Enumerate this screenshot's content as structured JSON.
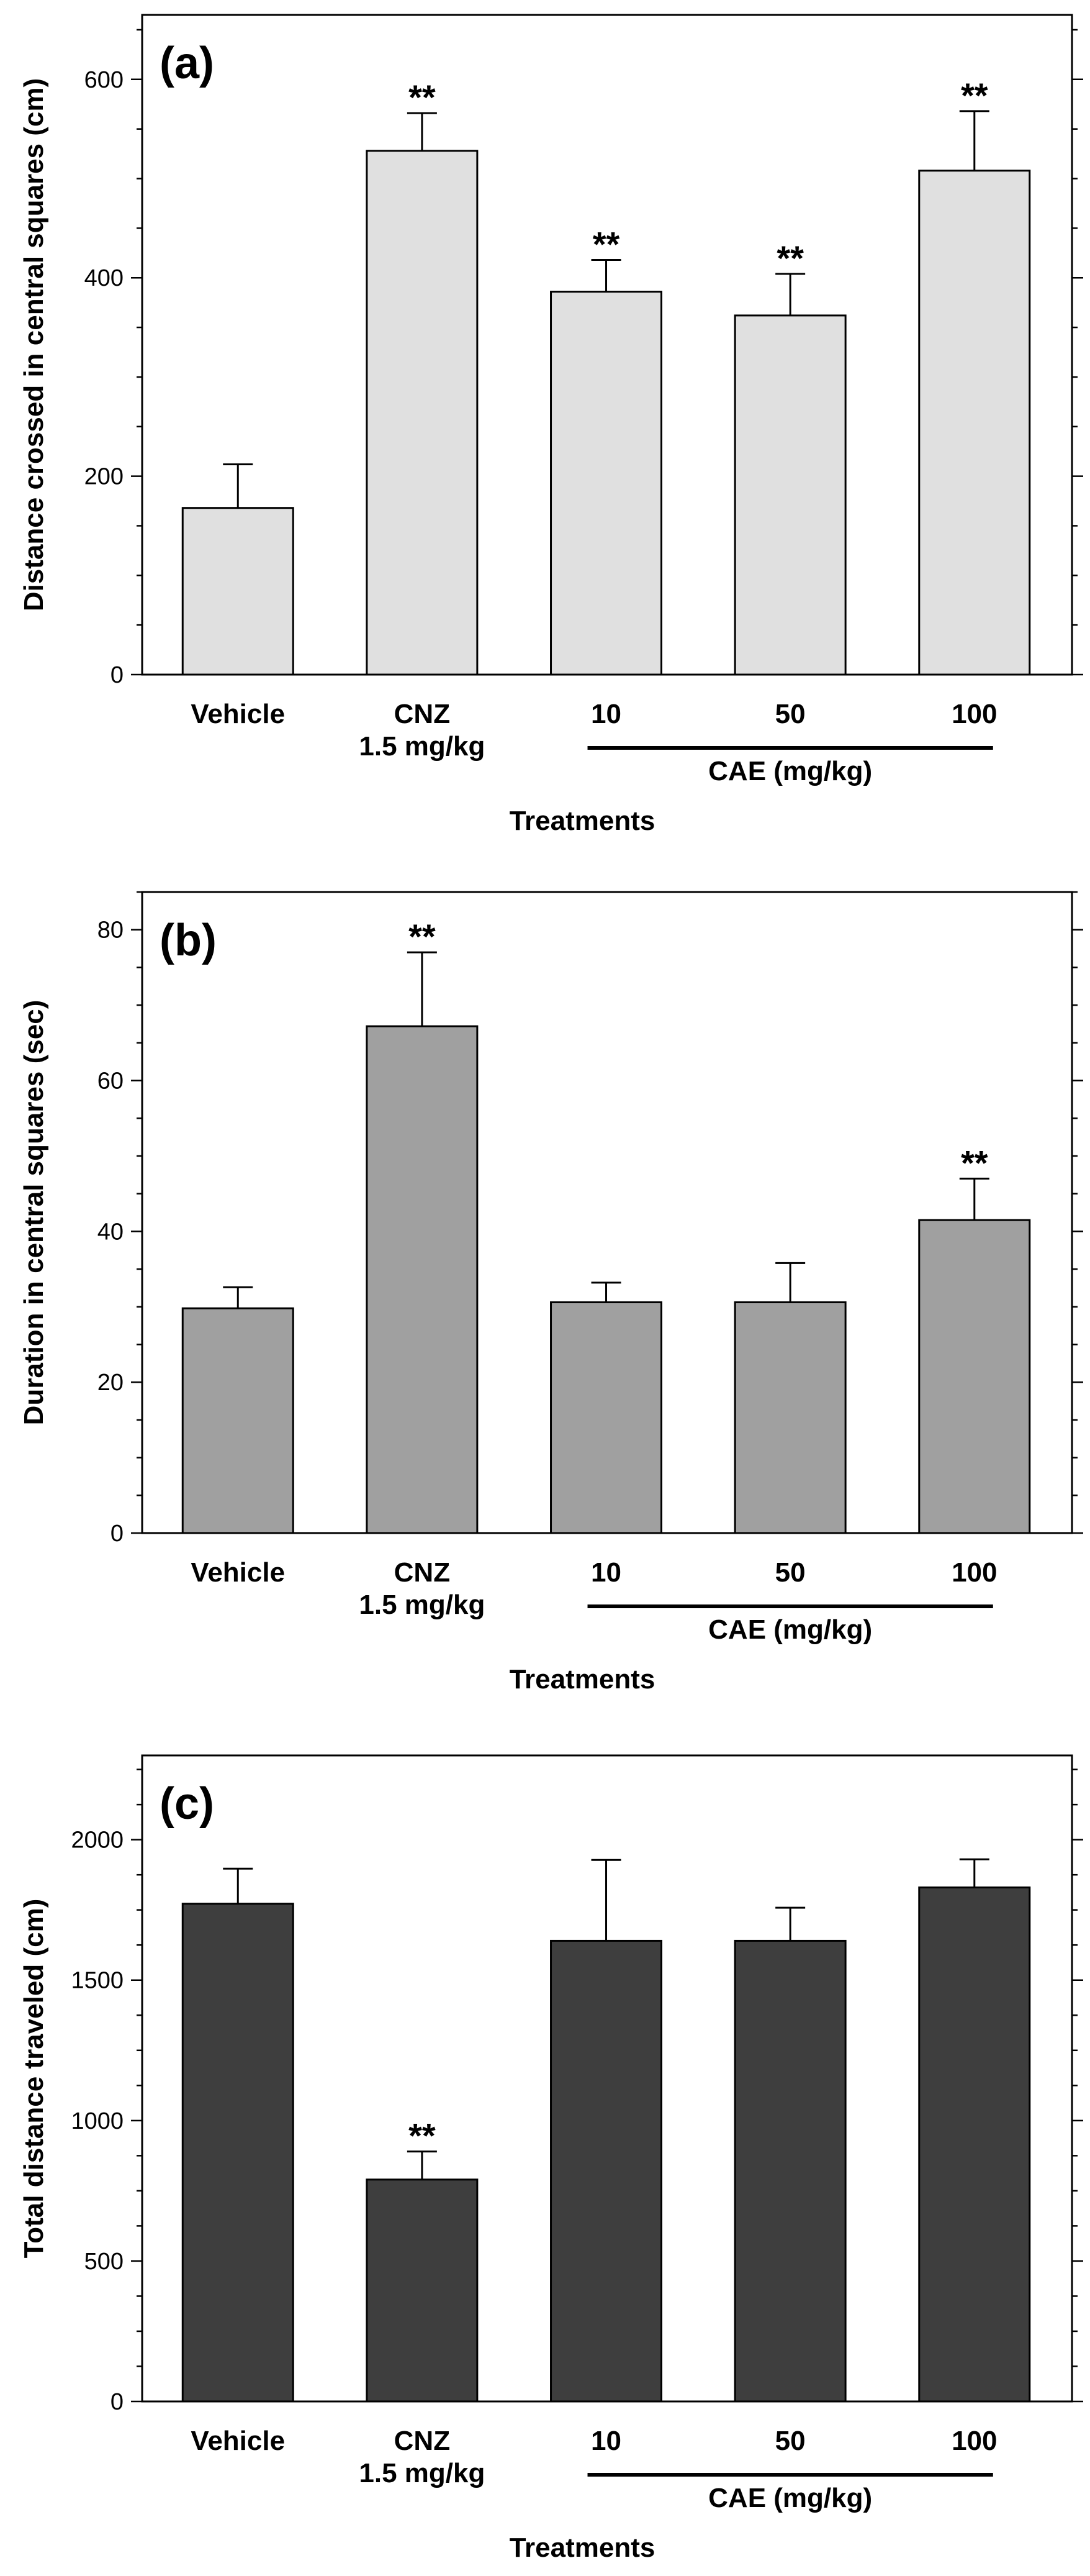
{
  "chart_data": [
    {
      "type": "bar",
      "panel": "(a)",
      "categories": [
        "Vehicle",
        "CNZ\n1.5 mg/kg",
        "10",
        "50",
        "100"
      ],
      "group_label": "CAE (mg/kg)",
      "group_categories": [
        "10",
        "50",
        "100"
      ],
      "values": [
        168,
        528,
        386,
        362,
        508
      ],
      "errors": [
        44,
        38,
        32,
        42,
        60
      ],
      "significance": [
        "",
        "**",
        "**",
        "**",
        "**"
      ],
      "xlabel": "Treatments",
      "ylabel": "Distance crossed in central squares (cm)",
      "ylim": [
        0,
        665
      ],
      "yticks": [
        0,
        200,
        400,
        600
      ],
      "grid": false,
      "bar_color": "#e0e0e0"
    },
    {
      "type": "bar",
      "panel": "(b)",
      "categories": [
        "Vehicle",
        "CNZ\n1.5 mg/kg",
        "10",
        "50",
        "100"
      ],
      "group_label": "CAE (mg/kg)",
      "group_categories": [
        "10",
        "50",
        "100"
      ],
      "values": [
        29.8,
        67.2,
        30.6,
        30.6,
        41.5
      ],
      "errors": [
        2.8,
        9.8,
        2.6,
        5.2,
        5.5
      ],
      "significance": [
        "",
        "**",
        "",
        "",
        "**"
      ],
      "xlabel": "Treatments",
      "ylabel": "Duration in central squares (sec)",
      "ylim": [
        0,
        85
      ],
      "yticks": [
        0,
        20,
        40,
        60,
        80
      ],
      "grid": false,
      "bar_color": "#a0a0a0"
    },
    {
      "type": "bar",
      "panel": "(c)",
      "categories": [
        "Vehicle",
        "CNZ\n1.5 mg/kg",
        "10",
        "50",
        "100"
      ],
      "group_label": "CAE (mg/kg)",
      "group_categories": [
        "10",
        "50",
        "100"
      ],
      "values": [
        1772,
        790,
        1640,
        1640,
        1830
      ],
      "errors": [
        125,
        100,
        288,
        118,
        100
      ],
      "significance": [
        "",
        "**",
        "",
        "",
        ""
      ],
      "xlabel": "Treatments",
      "ylabel": "Total distance traveled (cm)",
      "ylim": [
        0,
        2300
      ],
      "yticks": [
        0,
        500,
        1000,
        1500,
        2000
      ],
      "grid": false,
      "bar_color": "#3e3e3e"
    }
  ]
}
